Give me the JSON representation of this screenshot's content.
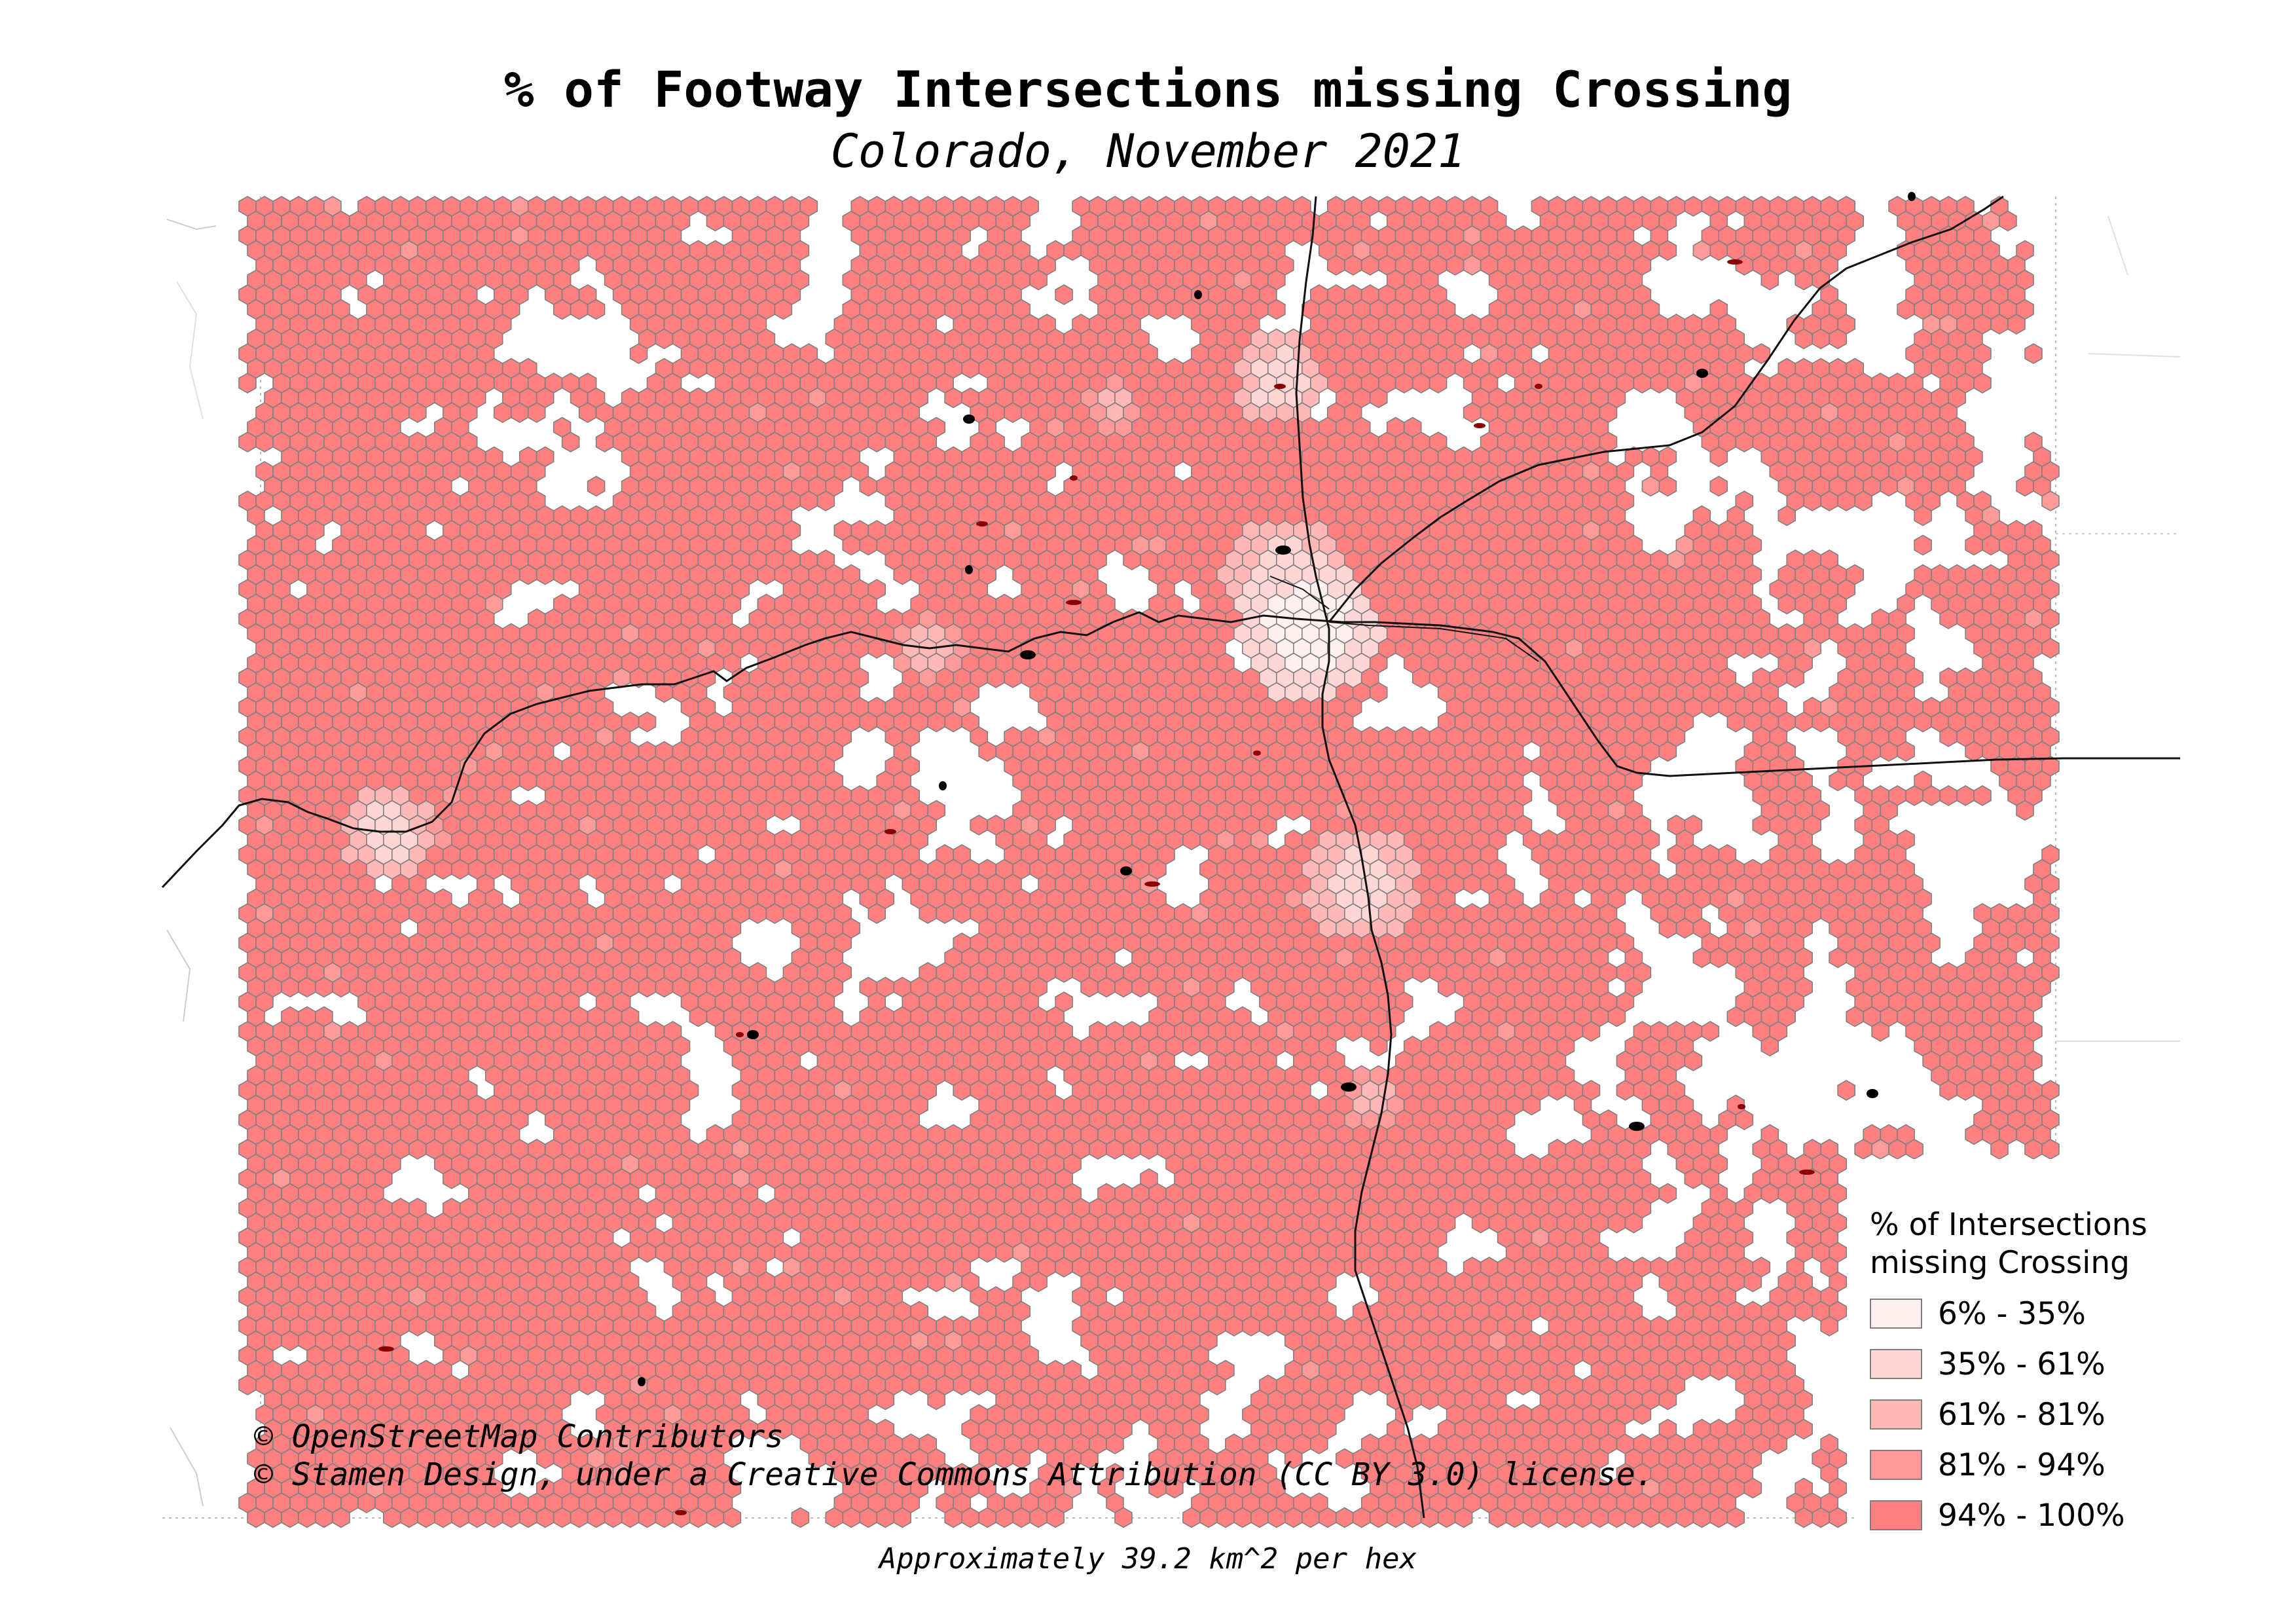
{
  "title": "% of Footway Intersections missing Crossing",
  "subtitle": "Colorado, November 2021",
  "attribution": {
    "line1": "© OpenStreetMap Contributors",
    "line2": "© Stamen Design, under a Creative Commons Attribution (CC BY 3.0) license."
  },
  "footnote": "Approximately 39.2 km^2 per hex",
  "legend": {
    "title_line1": "% of Intersections",
    "title_line2": "missing Crossing",
    "items": [
      {
        "label": "6% - 35%",
        "color": "#fff0f0"
      },
      {
        "label": "35% - 61%",
        "color": "#ffd6d6"
      },
      {
        "label": "61% - 81%",
        "color": "#ffb8b8"
      },
      {
        "label": "81% - 94%",
        "color": "#ff9a9a"
      },
      {
        "label": "94% - 100%",
        "color": "#ff8080"
      }
    ]
  },
  "map": {
    "region": "Colorado",
    "hex_fill_dominant": "#ff8080",
    "hex_stroke": "#808080",
    "road_color": "#1a1a1a",
    "water_color": "#8b0000"
  }
}
